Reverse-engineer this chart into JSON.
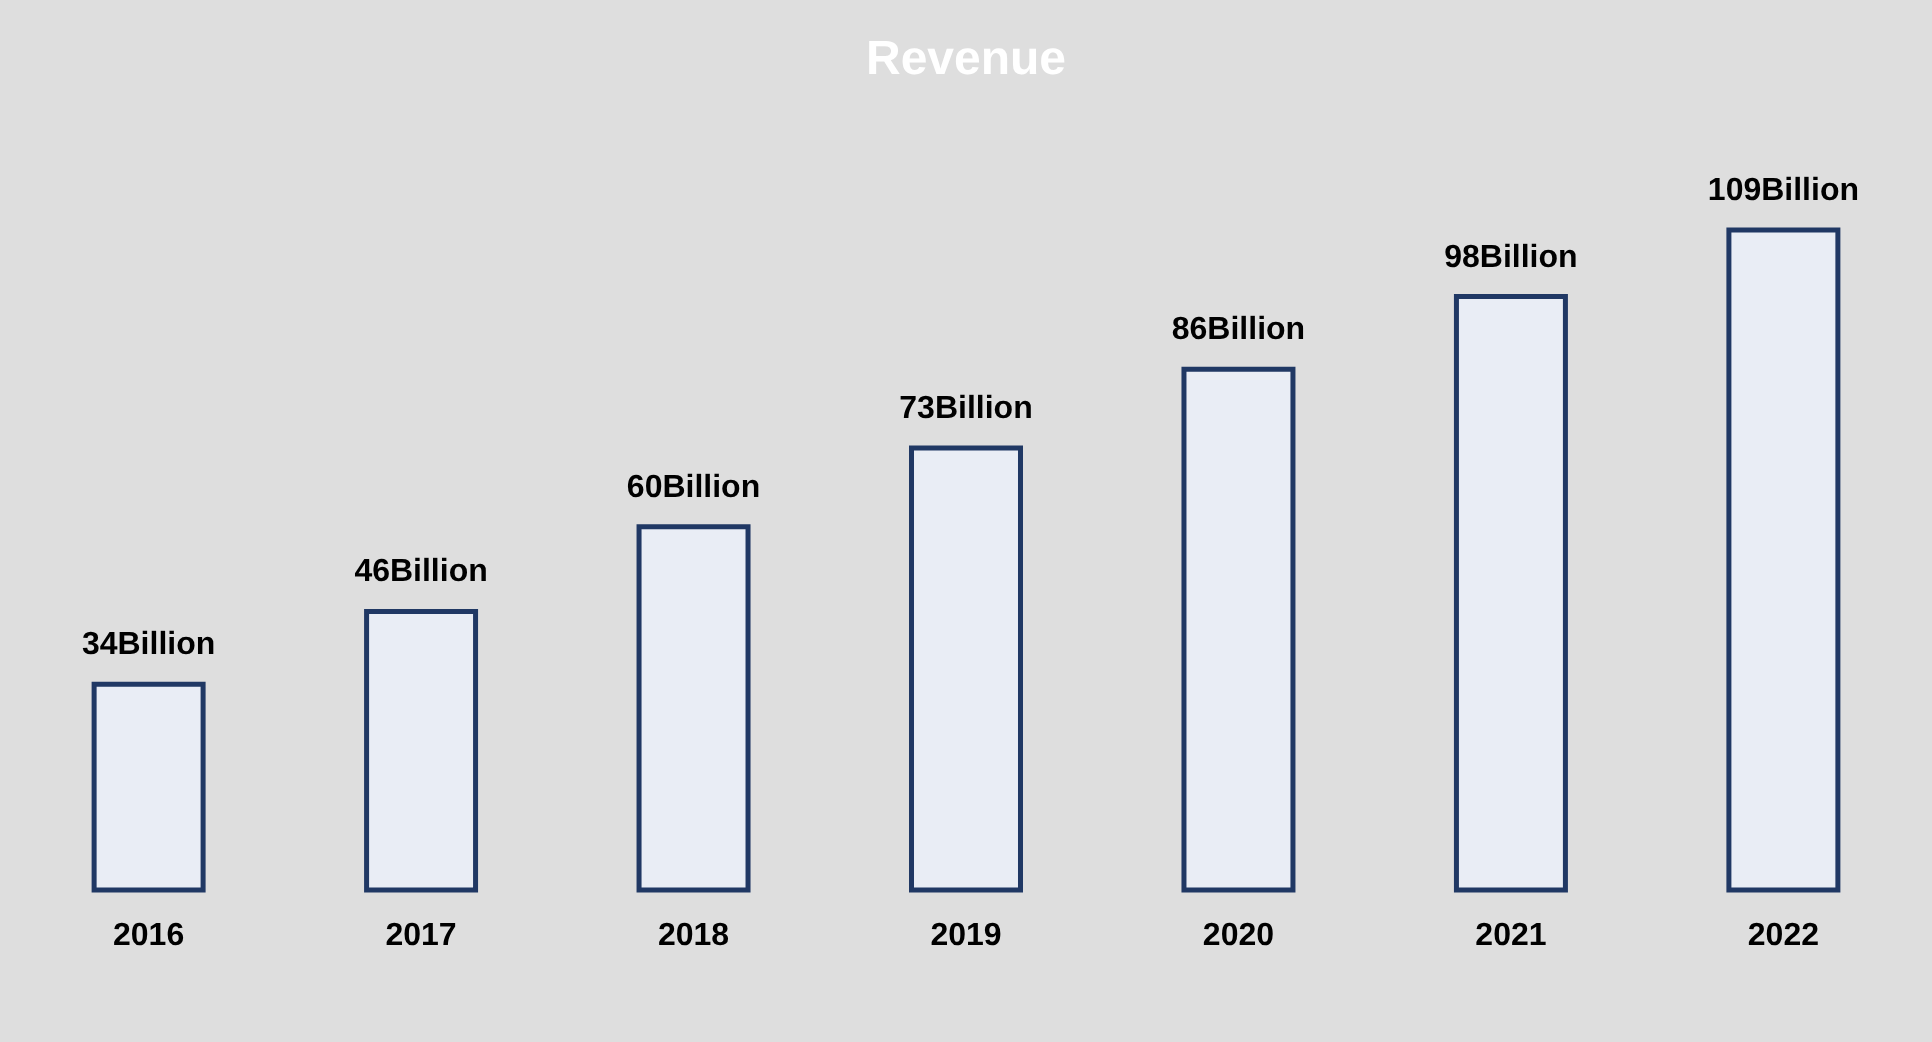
{
  "chart_data": {
    "type": "bar",
    "title": "Revenue",
    "categories": [
      "2016",
      "2017",
      "2018",
      "2019",
      "2020",
      "2021",
      "2022"
    ],
    "values": [
      34,
      46,
      60,
      73,
      86,
      98,
      109
    ],
    "value_labels": [
      "34Billion",
      "46Billion",
      "60Billion",
      "73Billion",
      "86Billion",
      "98Billion",
      "109Billion"
    ],
    "color": "#203864"
  }
}
